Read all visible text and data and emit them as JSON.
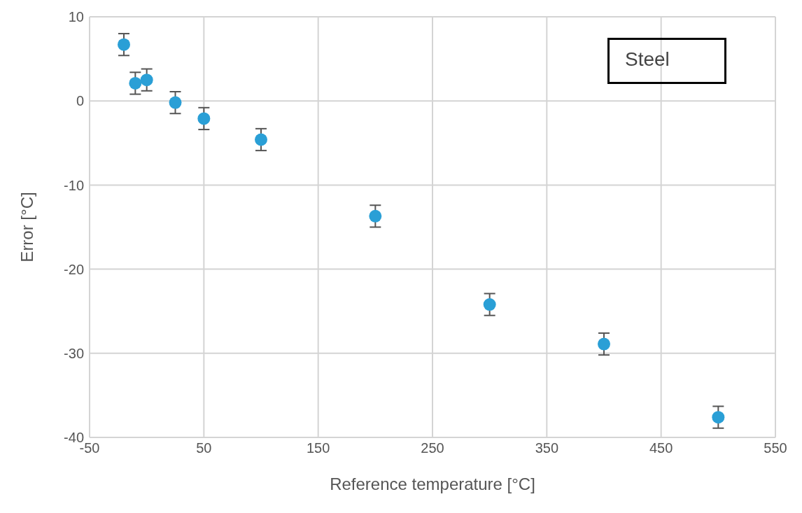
{
  "chart_data": {
    "type": "scatter",
    "xlabel": "Reference temperature [°C]",
    "ylabel": "Error [°C]",
    "x": [
      -20,
      -10,
      0,
      25,
      50,
      100,
      200,
      300,
      400,
      500
    ],
    "values": [
      6.7,
      2.1,
      2.5,
      -0.2,
      -2.1,
      -4.6,
      -13.7,
      -24.2,
      -28.9,
      -37.6
    ],
    "errors": [
      1.3,
      1.3,
      1.3,
      1.3,
      1.3,
      1.3,
      1.3,
      1.3,
      1.3,
      1.3
    ],
    "color": "#2a9fd6",
    "marker": "circle",
    "xlim": [
      -50,
      550
    ],
    "xticks": [
      -50,
      50,
      150,
      250,
      350,
      450,
      550
    ],
    "ylim": [
      -40,
      10
    ],
    "yticks": [
      -40,
      -30,
      -20,
      -10,
      0,
      10
    ],
    "grid": true,
    "annotations": [
      "Steel"
    ]
  }
}
